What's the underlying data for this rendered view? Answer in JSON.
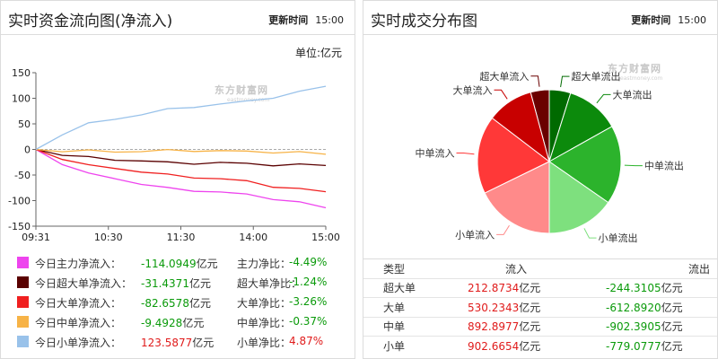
{
  "left_panel": {
    "title": "实时资金流向图(净流入)",
    "update_label": "更新时间",
    "update_time": "15:00",
    "unit": "单位:亿元",
    "watermark": "东方财富网",
    "watermark_sub": "eastmoney.com"
  },
  "right_panel": {
    "title": "实时成交分布图",
    "update_label": "更新时间",
    "update_time": "15:00",
    "watermark": "东方财富网",
    "watermark_sub": "eastmoney.com"
  },
  "legend": [
    {
      "name": "今日主力净流入：",
      "value": "-114.0949",
      "unit": "亿元",
      "ratio_label": "主力净比：",
      "ratio": "-4.49%",
      "color": "#ee44ee",
      "sign": "neg"
    },
    {
      "name": "今日超大单净流入：",
      "value": "-31.4371",
      "unit": "亿元",
      "ratio_label": "超大单净比：",
      "ratio": "-1.24%",
      "color": "#5a0000",
      "sign": "neg"
    },
    {
      "name": "今日大单净流入：",
      "value": "-82.6578",
      "unit": "亿元",
      "ratio_label": "大单净比：",
      "ratio": "-3.26%",
      "color": "#f02020",
      "sign": "neg"
    },
    {
      "name": "今日中单净流入：",
      "value": "-9.4928",
      "unit": "亿元",
      "ratio_label": "中单净比：",
      "ratio": "-0.37%",
      "color": "#f7b347",
      "sign": "neg"
    },
    {
      "name": "今日小单净流入：",
      "value": "123.5877",
      "unit": "亿元",
      "ratio_label": "小单净比：",
      "ratio": "4.87%",
      "color": "#99c2ea",
      "sign": "pos"
    }
  ],
  "table": {
    "headers": [
      "类型",
      "流入",
      "流出"
    ],
    "rows": [
      {
        "type": "超大单",
        "in": "212.8734",
        "out": "-244.3105",
        "unit": "亿元"
      },
      {
        "type": "大单",
        "in": "530.2343",
        "out": "-612.8920",
        "unit": "亿元"
      },
      {
        "type": "中单",
        "in": "892.8977",
        "out": "-902.3905",
        "unit": "亿元"
      },
      {
        "type": "小单",
        "in": "902.6654",
        "out": "-779.0777",
        "unit": "亿元"
      }
    ]
  },
  "chart_data": [
    {
      "type": "line",
      "x_ticks": [
        "09:31",
        "10:30",
        "11:30",
        "14:00",
        "15:00"
      ],
      "y_ticks": [
        150,
        100,
        50,
        0,
        -50,
        -100,
        -150
      ],
      "ylim": [
        -150,
        150
      ],
      "grid": false,
      "series": [
        {
          "name": "今日主力净流入",
          "color": "#ee44ee",
          "values": [
            0,
            -28,
            -48,
            -56,
            -68,
            -76,
            -80,
            -84,
            -88,
            -96,
            -104,
            -114.0949
          ]
        },
        {
          "name": "今日超大单净流入",
          "color": "#5a0000",
          "values": [
            0,
            -10,
            -16,
            -20,
            -22,
            -26,
            -27,
            -26,
            -28,
            -30,
            -30,
            -31.4371
          ]
        },
        {
          "name": "今日大单净流入",
          "color": "#f02020",
          "values": [
            0,
            -18,
            -32,
            -36,
            -44,
            -50,
            -54,
            -58,
            -62,
            -72,
            -78,
            -82.6578
          ]
        },
        {
          "name": "今日中单净流入",
          "color": "#f7b347",
          "values": [
            0,
            -3,
            -3,
            -4,
            -4,
            -2,
            -2,
            -3,
            -4,
            -5,
            -6,
            -9.4928
          ]
        },
        {
          "name": "今日小单净流入",
          "color": "#99c2ea",
          "values": [
            0,
            30,
            50,
            60,
            68,
            78,
            84,
            88,
            94,
            102,
            112,
            123.5877
          ]
        }
      ]
    },
    {
      "type": "pie",
      "slices": [
        {
          "label": "超大单流出",
          "value": 244.3105,
          "color": "#006a00"
        },
        {
          "label": "大单流出",
          "value": 612.892,
          "color": "#0c8a0c"
        },
        {
          "label": "中单流出",
          "value": 902.3905,
          "color": "#2cb32c"
        },
        {
          "label": "小单流出",
          "value": 779.0777,
          "color": "#7ee07e"
        },
        {
          "label": "小单流入",
          "value": 902.6654,
          "color": "#ff8a8a"
        },
        {
          "label": "中单流入",
          "value": 892.8977,
          "color": "#ff3838"
        },
        {
          "label": "大单流入",
          "value": 530.2343,
          "color": "#c80000"
        },
        {
          "label": "超大单流入",
          "value": 212.8734,
          "color": "#6a0000"
        }
      ]
    }
  ]
}
